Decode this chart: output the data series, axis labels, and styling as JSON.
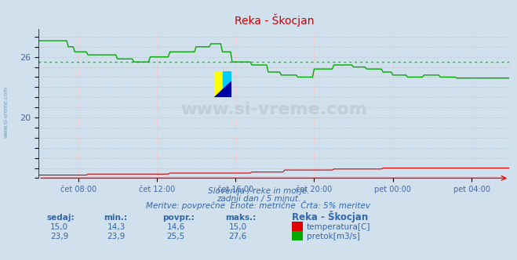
{
  "title": "Reka - Škocjan",
  "title_color": "#cc0000",
  "bg_color": "#d0e0ec",
  "plot_bg_color": "#d0e0ec",
  "grid_color_h": "#bbbbbb",
  "grid_color_v": "#ffbbbb",
  "ylabel_color": "#4466aa",
  "xlabel_color": "#4466aa",
  "temp_color": "#dd0000",
  "flow_color": "#00aa00",
  "avg_flow_color": "#00cc00",
  "ylim_min": 14.0,
  "ylim_max": 28.8,
  "ytick_vals": [
    14,
    15,
    16,
    17,
    18,
    19,
    20,
    21,
    22,
    23,
    24,
    25,
    26,
    27,
    28
  ],
  "ytick_labels_show": [
    20,
    26
  ],
  "temp_avg": 14.6,
  "flow_avg": 25.5,
  "subtitle1": "Slovenija / reke in morje.",
  "subtitle2": "zadnji dan / 5 minut.",
  "subtitle3": "Meritve: povprečne  Enote: metrične  Črta: 5% meritev",
  "subtitle_color": "#3366aa",
  "table_headers": [
    "sedaj:",
    "min.:",
    "povpr.:",
    "maks.:",
    "Reka - Škocjan"
  ],
  "table_row1": [
    "15,0",
    "14,3",
    "14,6",
    "15,0"
  ],
  "table_row2": [
    "23,9",
    "23,9",
    "25,5",
    "27,6"
  ],
  "legend_temp": "temperatura[C]",
  "legend_flow": "pretok[m3/s]",
  "watermark": "www.si-vreme.com",
  "watermark_color": "#c0ced8",
  "xtick_labels": [
    "čet 08:00",
    "čet 12:00",
    "čet 16:00",
    "čet 20:00",
    "pet 00:00",
    "pet 04:00"
  ],
  "n_points": 288
}
